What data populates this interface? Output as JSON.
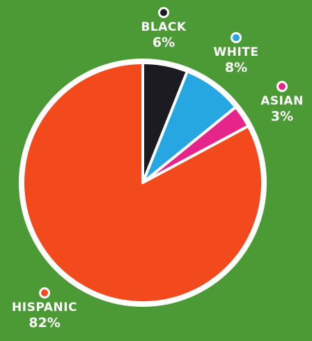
{
  "chart_data": {
    "type": "pie",
    "categories": [
      "BLACK",
      "WHITE",
      "ASIAN",
      "HISPANIC"
    ],
    "values": [
      6,
      8,
      3,
      82
    ],
    "value_labels": [
      "6%",
      "8%",
      "3%",
      "82%"
    ],
    "start_angle_deg": 0,
    "direction": "clockwise",
    "colors": {
      "BLACK": "#1c1b22",
      "WHITE": "#26a7e1",
      "ASIAN": "#e5258a",
      "HISPANIC": "#f24a1d",
      "outline": "#ffffff",
      "background": "#4b9a35"
    },
    "legend": "labels beside slices"
  }
}
